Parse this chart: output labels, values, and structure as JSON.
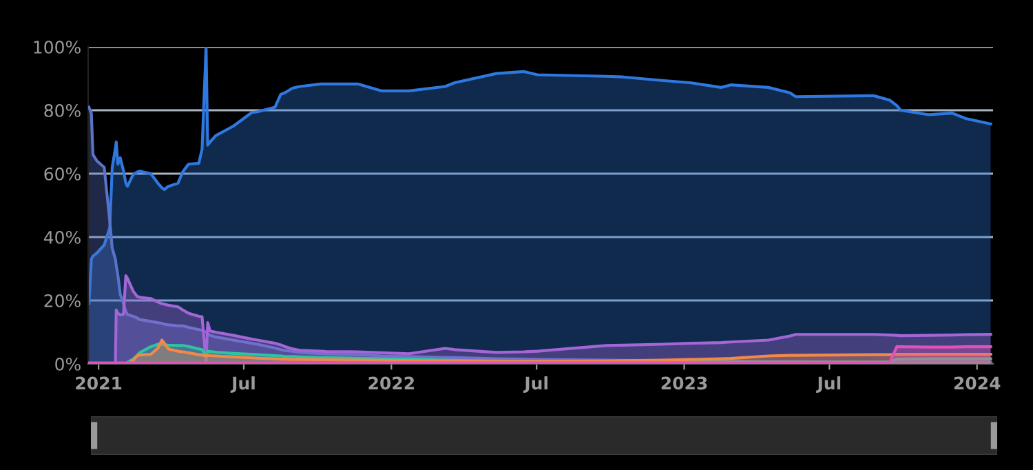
{
  "chart_data": {
    "type": "area",
    "grid": "y",
    "marker": "none",
    "line_style": "solid",
    "xlim": [
      "2020-12-19",
      "2024-01-21"
    ],
    "xticks": [
      {
        "value": "2021-01-01",
        "label": "2021"
      },
      {
        "value": "2021-07-01",
        "label": "Jul"
      },
      {
        "value": "2022-01-01",
        "label": "2022"
      },
      {
        "value": "2022-07-01",
        "label": "Jul"
      },
      {
        "value": "2023-01-01",
        "label": "2023"
      },
      {
        "value": "2023-07-01",
        "label": "Jul"
      },
      {
        "value": "2024-01-01",
        "label": "2024"
      }
    ],
    "ylim": [
      0,
      100
    ],
    "yticks": [
      {
        "value": 0,
        "label": "0%"
      },
      {
        "value": 20,
        "label": "20%"
      },
      {
        "value": 40,
        "label": "40%"
      },
      {
        "value": 60,
        "label": "60%"
      },
      {
        "value": 80,
        "label": "80%"
      },
      {
        "value": 100,
        "label": "100%"
      }
    ],
    "x": [
      "2020-12-20",
      "2020-12-23",
      "2020-12-25",
      "2020-12-30",
      "2021-01-08",
      "2021-01-15",
      "2021-01-18",
      "2021-01-22",
      "2021-01-23",
      "2021-01-25",
      "2021-01-28",
      "2021-02-01",
      "2021-02-04",
      "2021-02-06",
      "2021-02-13",
      "2021-02-18",
      "2021-02-21",
      "2021-03-07",
      "2021-03-16",
      "2021-03-21",
      "2021-03-24",
      "2021-03-29",
      "2021-04-10",
      "2021-04-16",
      "2021-04-23",
      "2021-05-06",
      "2021-05-10",
      "2021-05-15",
      "2021-05-17",
      "2021-05-20",
      "2021-05-27",
      "2021-06-18",
      "2021-07-11",
      "2021-07-18",
      "2021-08-09",
      "2021-08-16",
      "2021-08-21",
      "2021-08-31",
      "2021-09-09",
      "2021-10-05",
      "2021-10-12",
      "2021-11-20",
      "2021-12-20",
      "2022-01-23",
      "2022-03-09",
      "2022-03-21",
      "2022-05-12",
      "2022-06-15",
      "2022-07-02",
      "2022-09-26",
      "2022-10-17",
      "2022-12-04",
      "2023-01-08",
      "2023-02-16",
      "2023-02-28",
      "2023-04-16",
      "2023-05-13",
      "2023-05-20",
      "2023-08-25",
      "2023-09-14",
      "2023-09-23",
      "2023-09-28",
      "2023-11-02",
      "2023-12-01",
      "2023-12-18",
      "2024-01-18"
    ],
    "series": [
      {
        "color": "#2f78e0",
        "values": [
          19,
          33,
          34,
          35,
          37.5,
          43,
          62,
          68,
          70,
          63,
          65,
          61,
          57,
          56,
          59.7,
          60.5,
          60.8,
          60,
          57,
          55.5,
          55,
          56,
          57,
          60.6,
          63,
          63.3,
          67.7,
          100,
          69,
          70,
          72,
          75,
          79.3,
          79.5,
          81,
          85,
          85.5,
          87,
          87.5,
          88.3,
          88.3,
          88.3,
          86.1,
          86.1,
          87.5,
          88.7,
          91.6,
          92.2,
          91.2,
          90.7,
          90.5,
          89.4,
          88.7,
          87.2,
          88,
          87.2,
          85.5,
          84.3,
          84.6,
          83.2,
          81.5,
          80,
          78.6,
          79.1,
          77.4,
          75.7
        ]
      },
      {
        "color": "#5a73c8",
        "values": [
          81,
          79,
          66,
          64,
          62,
          45,
          36.5,
          33,
          31,
          28,
          22,
          19,
          16.5,
          15.6,
          15,
          14.5,
          14,
          13.4,
          13,
          12.8,
          12.5,
          12.3,
          12,
          12,
          11.5,
          10.8,
          10.6,
          10,
          9.5,
          9,
          8.5,
          7.5,
          6.5,
          6.2,
          5,
          4.5,
          4.2,
          4,
          3.6,
          3.2,
          3.1,
          2.9,
          2.5,
          2.3,
          2,
          2,
          1.6,
          1.5,
          1.4,
          1.2,
          1.1,
          1,
          0.9,
          0.8,
          0.8,
          0.7,
          0.7,
          0.7,
          0.6,
          0.6,
          0.6,
          0.5,
          0.5,
          0.5,
          0.5,
          0.5
        ]
      },
      {
        "color": "#a366d6",
        "values": [
          0,
          0,
          0,
          0,
          0,
          0,
          0,
          0,
          17,
          16,
          15.5,
          15.6,
          27.8,
          27,
          23,
          21.3,
          21,
          20.6,
          19.5,
          19,
          18.8,
          18.5,
          18,
          17,
          16,
          15,
          14.9,
          0.5,
          13,
          10.4,
          10,
          9,
          7.8,
          7.5,
          6.5,
          6,
          5.5,
          4.7,
          4.3,
          4,
          3.9,
          3.8,
          3.5,
          3.2,
          4.9,
          4.5,
          3.6,
          3.8,
          4,
          5.8,
          5.9,
          6.2,
          6.5,
          6.7,
          6.9,
          7.5,
          8.8,
          9.3,
          9.3,
          9.1,
          9,
          8.9,
          9,
          9.1,
          9.2,
          9.3
        ]
      },
      {
        "color": "#2ec4a0",
        "values": [
          0,
          0,
          0,
          0,
          0,
          0,
          0,
          0,
          0,
          0,
          0,
          0,
          0,
          0.5,
          1.5,
          2.6,
          3.5,
          5.4,
          6.2,
          6.2,
          6,
          5.9,
          5.8,
          5.8,
          5.5,
          4.7,
          4.5,
          2.7,
          4,
          3.9,
          3.7,
          3.3,
          3,
          2.9,
          2.6,
          2.5,
          2.4,
          2.3,
          2.2,
          2,
          2,
          1.8,
          1.6,
          1.5,
          1.2,
          1.1,
          0.9,
          0.8,
          0.8,
          0.7,
          0.7,
          0.6,
          0.6,
          0.6,
          0.6,
          0.5,
          0.5,
          0.5,
          0.5,
          0.6,
          1.5,
          1.5,
          1.6,
          1.6,
          1.6,
          1.6
        ]
      },
      {
        "color": "#f0894a",
        "values": [
          0,
          0,
          0,
          0,
          0,
          0,
          0,
          0,
          0,
          0,
          0,
          0,
          0,
          0,
          1,
          2.6,
          2.8,
          3,
          5,
          7.5,
          6.5,
          4.7,
          4,
          3.8,
          3.5,
          2.9,
          2.8,
          2.5,
          2.7,
          2.6,
          2.5,
          2.2,
          1.9,
          1.8,
          1.6,
          1.5,
          1.5,
          1.4,
          1.4,
          1.3,
          1.3,
          1.2,
          1.1,
          1,
          0.9,
          0.9,
          0.8,
          0.8,
          0.8,
          0.9,
          1,
          1.2,
          1.4,
          1.6,
          1.7,
          2.5,
          2.7,
          2.7,
          2.9,
          2.9,
          3,
          3,
          3,
          3,
          3,
          3
        ]
      },
      {
        "color": "#e052b8",
        "values": [
          0.3,
          0.3,
          0.3,
          0.3,
          0.3,
          0.3,
          0.3,
          0.3,
          0.3,
          0.3,
          0.3,
          0.3,
          0.3,
          0.3,
          0.3,
          0.3,
          0.3,
          0.3,
          0.3,
          0.3,
          0.3,
          0.3,
          0.3,
          0.3,
          0.3,
          0.3,
          0.3,
          0.3,
          0.3,
          0.3,
          0.3,
          0.3,
          0.3,
          0.3,
          0.3,
          0.3,
          0.3,
          0.3,
          0.3,
          0.3,
          0.3,
          0.3,
          0.3,
          0.3,
          0.3,
          0.3,
          0.3,
          0.3,
          0.3,
          0.3,
          0.3,
          0.3,
          0.3,
          0.3,
          0.3,
          0.3,
          0.3,
          0.3,
          0.3,
          0.3,
          5.4,
          5.4,
          5.3,
          5.3,
          5.4,
          5.4
        ]
      }
    ]
  }
}
